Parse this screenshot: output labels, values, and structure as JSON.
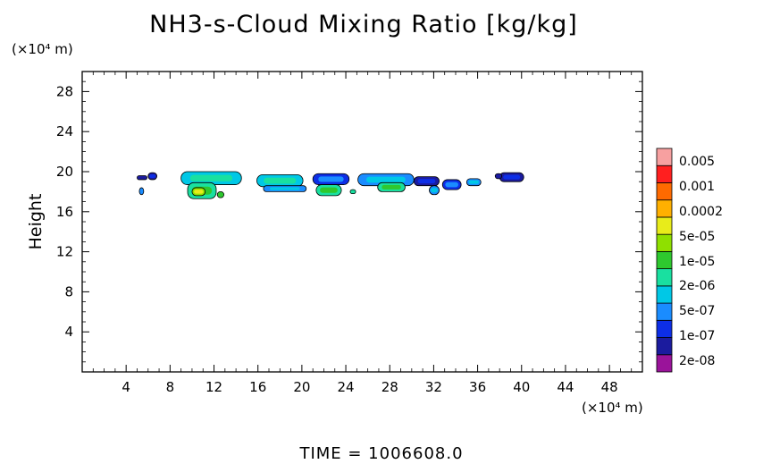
{
  "chart_data": {
    "type": "heatmap",
    "title": "NH3-s-Cloud Mixing Ratio [kg/kg]",
    "ylabel": "Height",
    "y_unit": "(×10⁴ m)",
    "x_unit": "(×10⁴ m)",
    "xlim": [
      0,
      51
    ],
    "ylim": [
      0,
      30
    ],
    "xticks": [
      4,
      8,
      12,
      16,
      20,
      24,
      28,
      32,
      36,
      40,
      44,
      48
    ],
    "yticks": [
      4,
      8,
      12,
      16,
      20,
      24,
      28
    ],
    "colorbar": {
      "labels": [
        "0.005",
        "0.001",
        "0.0002",
        "5e-05",
        "1e-05",
        "2e-06",
        "5e-07",
        "1e-07",
        "2e-08"
      ],
      "colors": [
        "#9a139a",
        "#1b1b9e",
        "#0d2ee6",
        "#1a8cff",
        "#00c8e6",
        "#19e0a0",
        "#2ec82e",
        "#8fe000",
        "#e8ec1a",
        "#ffb000",
        "#ff6a00",
        "#ff1f1f",
        "#f7a0a0"
      ]
    },
    "cloud_patches": [
      {
        "x": [
          5.0,
          5.9
        ],
        "y": [
          19.2,
          19.6
        ],
        "level": 1
      },
      {
        "x": [
          5.2,
          5.6
        ],
        "y": [
          17.7,
          18.4
        ],
        "level": 4
      },
      {
        "x": [
          6.0,
          6.8
        ],
        "y": [
          19.2,
          19.9
        ],
        "level": 2
      },
      {
        "x": [
          9.0,
          14.5
        ],
        "y": [
          18.7,
          20.0
        ],
        "level": 5
      },
      {
        "x": [
          9.6,
          12.2
        ],
        "y": [
          17.3,
          18.9
        ],
        "level": 6
      },
      {
        "x": [
          10.0,
          11.2
        ],
        "y": [
          17.6,
          18.4
        ],
        "level": 8
      },
      {
        "x": [
          12.3,
          12.9
        ],
        "y": [
          17.4,
          18.0
        ],
        "level": 7
      },
      {
        "x": [
          15.9,
          20.1
        ],
        "y": [
          18.5,
          19.7
        ],
        "level": 5
      },
      {
        "x": [
          16.5,
          20.4
        ],
        "y": [
          18.0,
          18.6
        ],
        "level": 4
      },
      {
        "x": [
          21.0,
          24.3
        ],
        "y": [
          18.7,
          19.8
        ],
        "level": 3
      },
      {
        "x": [
          21.3,
          23.6
        ],
        "y": [
          17.6,
          18.7
        ],
        "level": 6
      },
      {
        "x": [
          24.4,
          24.9
        ],
        "y": [
          17.8,
          18.2
        ],
        "level": 6
      },
      {
        "x": [
          25.1,
          30.2
        ],
        "y": [
          18.6,
          19.8
        ],
        "level": 4
      },
      {
        "x": [
          26.9,
          29.4
        ],
        "y": [
          18.0,
          18.9
        ],
        "level": 6
      },
      {
        "x": [
          30.2,
          32.5
        ],
        "y": [
          18.6,
          19.5
        ],
        "level": 2
      },
      {
        "x": [
          31.6,
          32.5
        ],
        "y": [
          17.7,
          18.6
        ],
        "level": 4
      },
      {
        "x": [
          32.8,
          34.5
        ],
        "y": [
          18.2,
          19.2
        ],
        "level": 3
      },
      {
        "x": [
          35.0,
          36.3
        ],
        "y": [
          18.6,
          19.3
        ],
        "level": 4
      },
      {
        "x": [
          38.0,
          40.2
        ],
        "y": [
          19.0,
          19.9
        ],
        "level": 2
      },
      {
        "x": [
          37.6,
          38.2
        ],
        "y": [
          19.3,
          19.8
        ],
        "level": 1
      }
    ]
  },
  "footer": {
    "time_label": "TIME  =  1006608.0"
  }
}
